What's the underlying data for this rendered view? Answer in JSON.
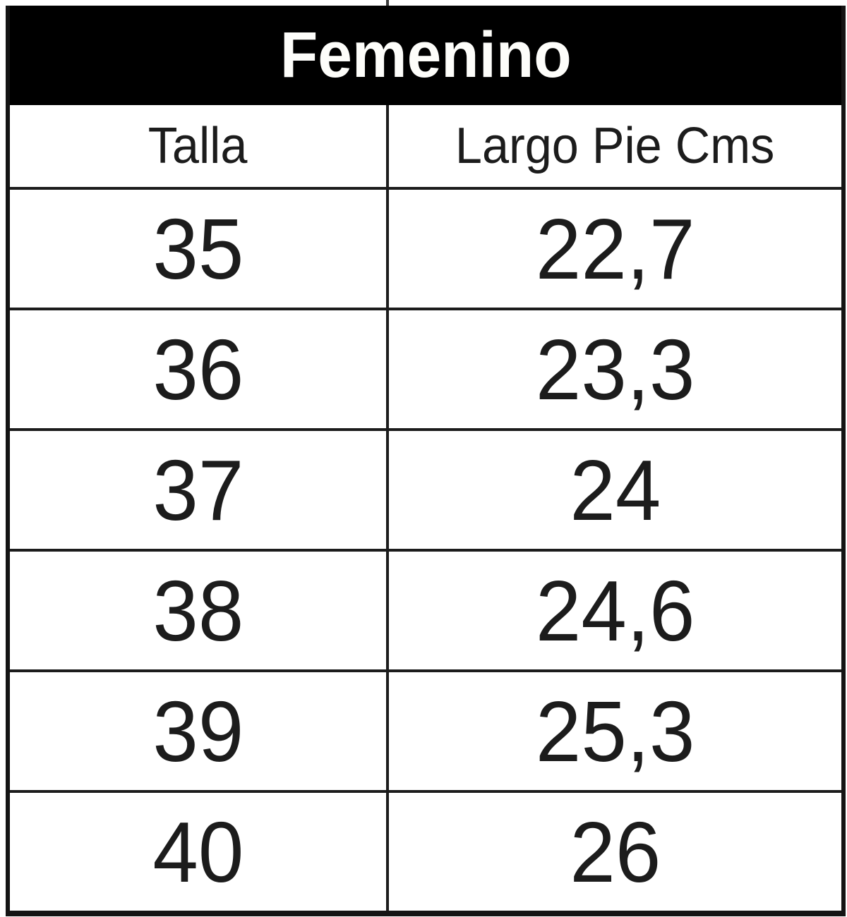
{
  "chart_data": {
    "type": "table",
    "title": "Femenino",
    "columns": [
      "Talla",
      "Largo Pie Cms"
    ],
    "rows": [
      [
        "35",
        "22,7"
      ],
      [
        "36",
        "23,3"
      ],
      [
        "37",
        "24"
      ],
      [
        "38",
        "24,6"
      ],
      [
        "39",
        "25,3"
      ],
      [
        "40",
        "26"
      ]
    ],
    "notes": "Women's shoe size chart: size (Talla) vs foot length in centimeters, decimal comma notation"
  },
  "colors": {
    "title_band_bg": "#000000",
    "title_text": "#ffffff",
    "cell_bg": "#ffffff",
    "cell_text": "#1c1c1c",
    "border": "#141414"
  }
}
